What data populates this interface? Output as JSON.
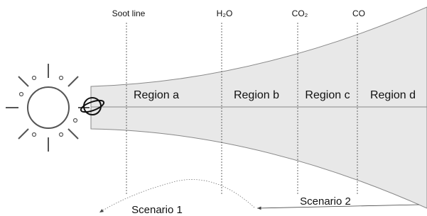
{
  "diagram": {
    "markers": [
      "Soot line",
      "H₂O",
      "CO₂",
      "CO"
    ],
    "regions": [
      "Region a",
      "Region b",
      "Region c",
      "Region d"
    ],
    "scenarios": [
      "Scenario 1",
      "Scenario 2"
    ]
  }
}
